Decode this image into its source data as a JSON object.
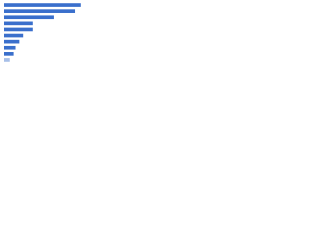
{
  "chart_data": {
    "type": "hbar",
    "categories": [
      null,
      null,
      null,
      null,
      null,
      null,
      null,
      null,
      null,
      null
    ],
    "values": [
      80,
      74,
      52,
      30,
      30,
      20,
      16,
      12,
      10,
      6
    ],
    "colors": [
      "#3a6fcc",
      "#3a6fcc",
      "#3a6fcc",
      "#3a6fcc",
      "#3a6fcc",
      "#3a6fcc",
      "#3a6fcc",
      "#3a6fcc",
      "#3a6fcc",
      "#a7bfe8"
    ],
    "xlim": [
      0,
      100
    ]
  }
}
